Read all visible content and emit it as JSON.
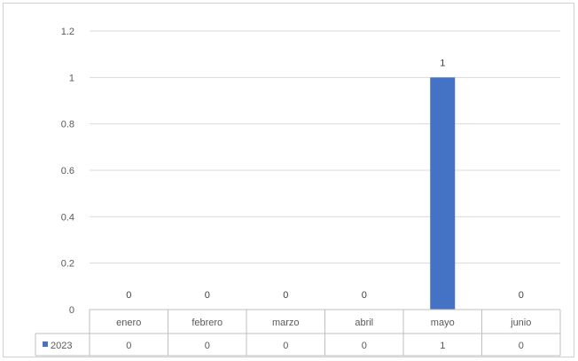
{
  "chart_data": {
    "type": "bar",
    "categories": [
      "enero",
      "febrero",
      "marzo",
      "abril",
      "mayo",
      "junio"
    ],
    "series": [
      {
        "name": "2023",
        "values": [
          0,
          0,
          0,
          0,
          1,
          0
        ],
        "color": "#4472c4"
      }
    ],
    "ylim": [
      0,
      1.2
    ],
    "yticks": [
      "0",
      "0.2",
      "0.4",
      "0.6",
      "0.8",
      "1",
      "1.2"
    ],
    "data_labels": [
      "0",
      "0",
      "0",
      "0",
      "1",
      "0"
    ],
    "grid": true,
    "data_table": true,
    "gridline_color": "#d9d9d9",
    "axis_color": "#bfbfbf"
  }
}
